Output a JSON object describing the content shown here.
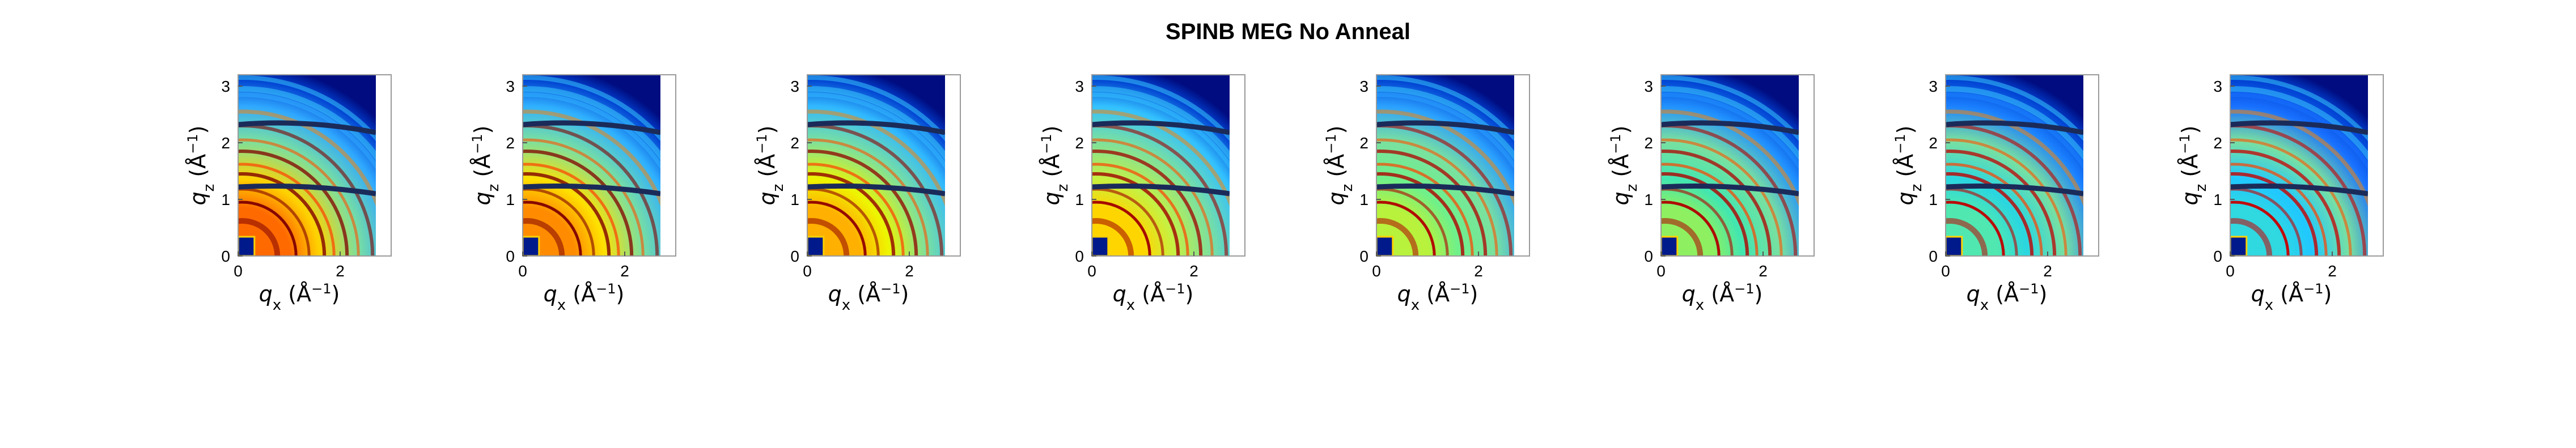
{
  "title": "SPINB MEG No Anneal",
  "chart_data": [
    {
      "type": "heatmap",
      "xlabel": "q_x (Å^-1)",
      "ylabel": "q_z (Å^-1)",
      "xlim": [
        0,
        3
      ],
      "ylim": [
        0,
        3.2
      ],
      "x_ticks": [
        "0",
        "2"
      ],
      "y_ticks": [
        "0",
        "1",
        "2",
        "3"
      ],
      "data_extent_x": [
        0,
        2.7
      ],
      "colormap": "jet",
      "grid": false
    },
    {
      "type": "heatmap",
      "xlabel": "q_x (Å^-1)",
      "ylabel": "q_z (Å^-1)",
      "xlim": [
        0,
        3
      ],
      "ylim": [
        0,
        3.2
      ],
      "x_ticks": [
        "0",
        "2"
      ],
      "y_ticks": [
        "0",
        "1",
        "2",
        "3"
      ],
      "data_extent_x": [
        0,
        2.7
      ],
      "colormap": "jet",
      "grid": false
    },
    {
      "type": "heatmap",
      "xlabel": "q_x (Å^-1)",
      "ylabel": "q_z (Å^-1)",
      "xlim": [
        0,
        3
      ],
      "ylim": [
        0,
        3.2
      ],
      "x_ticks": [
        "0",
        "2"
      ],
      "y_ticks": [
        "0",
        "1",
        "2",
        "3"
      ],
      "data_extent_x": [
        0,
        2.7
      ],
      "colormap": "jet",
      "grid": false
    },
    {
      "type": "heatmap",
      "xlabel": "q_x (Å^-1)",
      "ylabel": "q_z (Å^-1)",
      "xlim": [
        0,
        3
      ],
      "ylim": [
        0,
        3.2
      ],
      "x_ticks": [
        "0",
        "2"
      ],
      "y_ticks": [
        "0",
        "1",
        "2",
        "3"
      ],
      "data_extent_x": [
        0,
        2.7
      ],
      "colormap": "jet",
      "grid": false
    },
    {
      "type": "heatmap",
      "xlabel": "q_x (Å^-1)",
      "ylabel": "q_z (Å^-1)",
      "xlim": [
        0,
        3
      ],
      "ylim": [
        0,
        3.2
      ],
      "x_ticks": [
        "0",
        "2"
      ],
      "y_ticks": [
        "0",
        "1",
        "2",
        "3"
      ],
      "data_extent_x": [
        0,
        2.7
      ],
      "colormap": "jet",
      "grid": false
    },
    {
      "type": "heatmap",
      "xlabel": "q_x (Å^-1)",
      "ylabel": "q_z (Å^-1)",
      "xlim": [
        0,
        3
      ],
      "ylim": [
        0,
        3.2
      ],
      "x_ticks": [
        "0",
        "2"
      ],
      "y_ticks": [
        "0",
        "1",
        "2",
        "3"
      ],
      "data_extent_x": [
        0,
        2.7
      ],
      "colormap": "jet",
      "grid": false
    },
    {
      "type": "heatmap",
      "xlabel": "q_x (Å^-1)",
      "ylabel": "q_z (Å^-1)",
      "xlim": [
        0,
        3
      ],
      "ylim": [
        0,
        3.2
      ],
      "x_ticks": [
        "0",
        "2"
      ],
      "y_ticks": [
        "0",
        "1",
        "2",
        "3"
      ],
      "data_extent_x": [
        0,
        2.7
      ],
      "colormap": "jet",
      "grid": false
    },
    {
      "type": "heatmap",
      "xlabel": "q_x (Å^-1)",
      "ylabel": "q_z (Å^-1)",
      "xlim": [
        0,
        3
      ],
      "ylim": [
        0,
        3.2
      ],
      "x_ticks": [
        "0",
        "2"
      ],
      "y_ticks": [
        "0",
        "1",
        "2",
        "3"
      ],
      "data_extent_x": [
        0,
        2.7
      ],
      "colormap": "jet",
      "grid": false
    }
  ]
}
